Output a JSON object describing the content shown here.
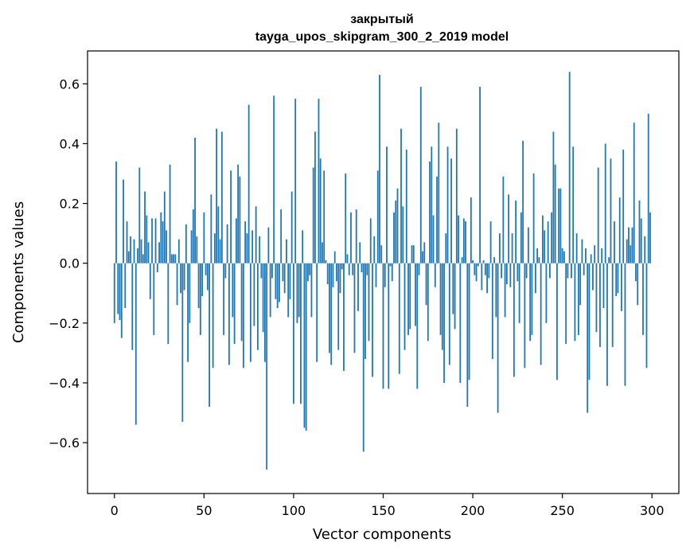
{
  "chart_data": {
    "type": "bar",
    "title": "закрытый",
    "subtitle": "tayga_upos_skipgram_300_2_2019 model",
    "xlabel": "Vector components",
    "ylabel": "Components values",
    "xlim": [
      -15,
      315
    ],
    "ylim": [
      -0.77,
      0.71
    ],
    "xticks": [
      0,
      50,
      100,
      150,
      200,
      250,
      300
    ],
    "xtick_labels": [
      "0",
      "50",
      "100",
      "150",
      "200",
      "250",
      "300"
    ],
    "yticks": [
      -0.6,
      -0.4,
      -0.2,
      0.0,
      0.2,
      0.4,
      0.6
    ],
    "ytick_labels": [
      "−0.6",
      "−0.4",
      "−0.2",
      "0.0",
      "0.2",
      "0.4",
      "0.6"
    ],
    "grid": false,
    "bar_color": "#1f77b4",
    "x": "0..299",
    "values": [
      -0.2,
      0.34,
      -0.17,
      -0.19,
      -0.25,
      0.28,
      -0.15,
      0.14,
      0.04,
      0.09,
      -0.29,
      0.08,
      -0.54,
      0.05,
      0.32,
      0.08,
      0.03,
      0.24,
      0.16,
      0.07,
      -0.12,
      0.15,
      -0.24,
      0.15,
      -0.03,
      0.07,
      0.17,
      0.14,
      0.24,
      0.11,
      -0.27,
      0.33,
      0.03,
      0.03,
      0.03,
      -0.14,
      0.08,
      -0.1,
      -0.53,
      -0.09,
      0.13,
      -0.33,
      -0.2,
      0.11,
      0.18,
      0.42,
      0.09,
      -0.15,
      -0.24,
      -0.11,
      0.17,
      -0.04,
      -0.09,
      -0.48,
      0.23,
      -0.35,
      0.1,
      0.45,
      0.19,
      0.08,
      0.44,
      -0.24,
      -0.05,
      0.13,
      -0.34,
      0.31,
      -0.18,
      -0.27,
      0.15,
      0.33,
      0.29,
      -0.26,
      -0.35,
      0.14,
      0.1,
      0.53,
      -0.33,
      0.11,
      -0.21,
      0.19,
      -0.29,
      0.09,
      -0.05,
      -0.23,
      -0.33,
      -0.69,
      0.12,
      -0.18,
      -0.05,
      0.56,
      -0.12,
      -0.15,
      -0.13,
      0.18,
      -0.06,
      -0.1,
      0.08,
      -0.18,
      -0.12,
      0.24,
      -0.47,
      0.55,
      -0.2,
      -0.18,
      -0.47,
      0.11,
      -0.55,
      -0.56,
      -0.06,
      -0.04,
      -0.18,
      0.32,
      0.44,
      -0.33,
      0.55,
      0.35,
      0.07,
      0.31,
      0.01,
      -0.07,
      -0.3,
      -0.34,
      -0.08,
      0.04,
      -0.06,
      -0.29,
      -0.1,
      -0.02,
      -0.36,
      0.3,
      0.03,
      -0.04,
      0.17,
      -0.04,
      -0.3,
      0.18,
      -0.16,
      0.07,
      -0.03,
      -0.63,
      -0.32,
      -0.04,
      -0.26,
      0.15,
      -0.38,
      0.09,
      -0.08,
      0.31,
      0.63,
      0.06,
      -0.42,
      -0.08,
      0.39,
      -0.42,
      -0.01,
      -0.06,
      0.17,
      0.21,
      0.25,
      -0.37,
      0.45,
      0.19,
      -0.29,
      0.38,
      -0.24,
      -0.22,
      0.06,
      0.06,
      -0.21,
      -0.42,
      -0.04,
      0.59,
      0.04,
      0.07,
      -0.14,
      -0.26,
      0.34,
      0.39,
      0.16,
      -0.08,
      0.29,
      0.47,
      -0.24,
      -0.29,
      -0.4,
      0.1,
      0.39,
      -0.34,
      0.35,
      -0.17,
      -0.22,
      0.45,
      0.16,
      -0.4,
      0.02,
      0.15,
      0.14,
      -0.48,
      -0.39,
      0.22,
      0.01,
      -0.04,
      -0.06,
      -0.01,
      0.59,
      -0.09,
      0.01,
      -0.04,
      -0.1,
      -0.05,
      0.14,
      -0.32,
      0.02,
      -0.18,
      -0.5,
      0.1,
      -0.05,
      0.29,
      -0.18,
      -0.07,
      0.23,
      -0.08,
      0.1,
      -0.38,
      0.21,
      -0.06,
      -0.2,
      0.17,
      0.41,
      -0.35,
      -0.05,
      0.12,
      -0.26,
      -0.24,
      0.3,
      -0.1,
      0.05,
      0.02,
      -0.34,
      0.16,
      0.11,
      -0.2,
      0.14,
      -0.05,
      0.17,
      0.44,
      0.33,
      -0.39,
      0.25,
      0.25,
      0.05,
      0.04,
      -0.27,
      -0.05,
      0.64,
      -0.05,
      0.39,
      -0.26,
      0.1,
      -0.24,
      -0.14,
      0.08,
      -0.04,
      0.05,
      -0.5,
      -0.39,
      0.03,
      -0.09,
      0.06,
      -0.23,
      0.32,
      -0.28,
      0.05,
      -0.15,
      0.4,
      -0.41,
      0.02,
      0.35,
      -0.28,
      0.14,
      -0.11,
      -0.1,
      0.22,
      -0.16,
      0.38,
      -0.41,
      0.08,
      0.12,
      0.06,
      0.12,
      0.47,
      -0.06,
      -0.14,
      0.21,
      0.15,
      -0.24,
      0.09,
      -0.35,
      0.5,
      0.17
    ]
  }
}
